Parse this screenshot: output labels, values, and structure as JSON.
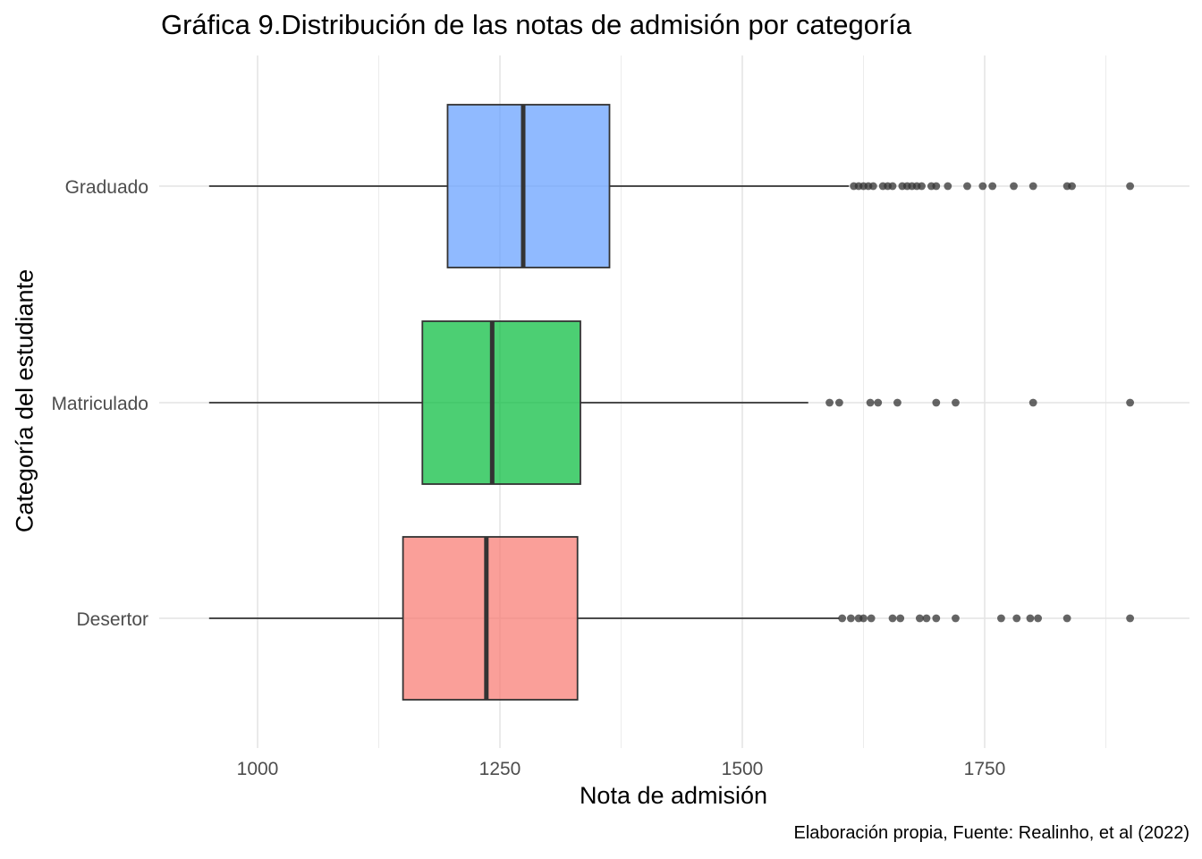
{
  "title": "Gráfica 9.Distribución de las notas de admisión por categoría",
  "caption": "Elaboración propia, Fuente: Realinho, et al (2022)",
  "chart_data": {
    "type": "boxplot",
    "orientation": "horizontal",
    "title": "Gráfica 9.Distribución de las notas de admisión por categoría",
    "xlabel": "Nota de admisión",
    "ylabel": "Categoría del estudiante",
    "xlim": [
      950,
      1900
    ],
    "xticks": [
      1000,
      1250,
      1500,
      1750
    ],
    "grid": true,
    "legend": "none",
    "categories": [
      "Graduado",
      "Matriculado",
      "Desertor"
    ],
    "series": [
      {
        "name": "Graduado",
        "color": "#619CFF",
        "min": 950,
        "q1": 1196,
        "median": 1274,
        "q3": 1363,
        "max": 1610,
        "outliers": [
          1615,
          1620,
          1625,
          1630,
          1635,
          1645,
          1650,
          1655,
          1665,
          1670,
          1675,
          1680,
          1685,
          1695,
          1700,
          1712,
          1732,
          1748,
          1758,
          1780,
          1800,
          1835,
          1840,
          1900
        ]
      },
      {
        "name": "Matriculado",
        "color": "#00BA38",
        "min": 950,
        "q1": 1170,
        "median": 1242,
        "q3": 1333,
        "max": 1568,
        "outliers": [
          1590,
          1600,
          1632,
          1640,
          1660,
          1700,
          1720,
          1800,
          1900
        ]
      },
      {
        "name": "Desertor",
        "color": "#F8766D",
        "min": 950,
        "q1": 1150,
        "median": 1236,
        "q3": 1330,
        "max": 1600,
        "outliers": [
          1603,
          1612,
          1620,
          1625,
          1633,
          1655,
          1663,
          1683,
          1690,
          1700,
          1720,
          1767,
          1783,
          1797,
          1805,
          1835,
          1900
        ]
      }
    ]
  }
}
